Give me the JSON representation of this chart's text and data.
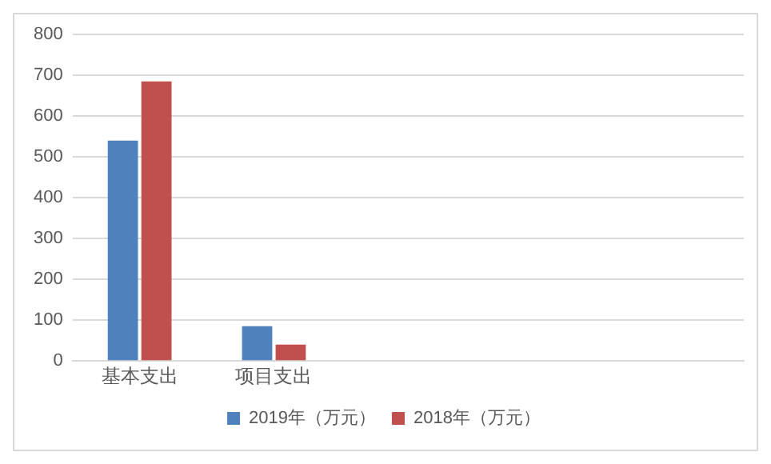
{
  "chart_data": {
    "type": "bar",
    "categories": [
      "基本支出",
      "项目支出",
      null,
      null,
      null
    ],
    "series": [
      {
        "name": "2019年（万元）",
        "color": "#4f81bd",
        "values": [
          540,
          85,
          null,
          null,
          null
        ]
      },
      {
        "name": "2018年（万元）",
        "color": "#c0504d",
        "values": [
          685,
          40,
          null,
          null,
          null
        ]
      }
    ],
    "ylim": [
      0,
      800
    ],
    "yticks": [
      0,
      100,
      200,
      300,
      400,
      500,
      600,
      700,
      800
    ],
    "grid": "y",
    "legend": "bottom"
  }
}
